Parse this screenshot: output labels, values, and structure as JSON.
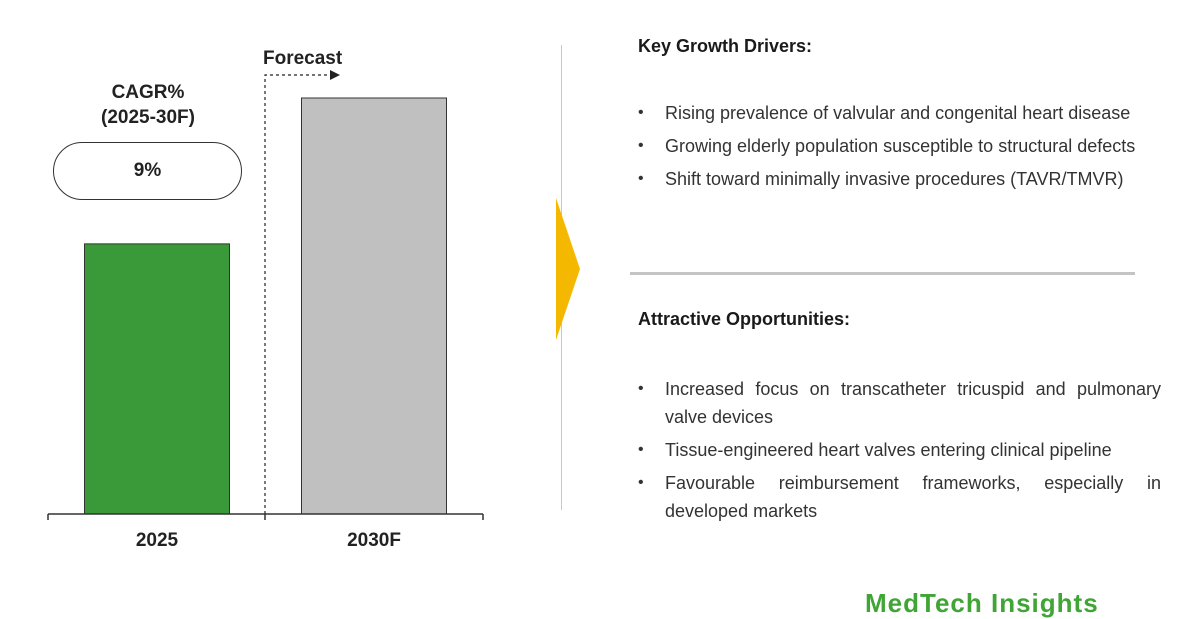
{
  "chart_data": {
    "type": "bar",
    "categories": [
      "2025",
      "2030F"
    ],
    "values": [
      100,
      154
    ],
    "colors": [
      "#3a9a3a",
      "#c0c0c0"
    ],
    "forecast_label": "Forecast",
    "forecast_start_category": "2030F",
    "cagr_label": [
      "CAGR%",
      "(2025-30F)"
    ],
    "cagr_value": "9%"
  },
  "drivers": {
    "title": "Key Growth Drivers:",
    "items": [
      "Rising prevalence of valvular and congenital heart disease",
      "Growing elderly population susceptible to structural defects",
      "Shift toward minimally invasive procedures (TAVR/TMVR)"
    ]
  },
  "opportunities": {
    "title": "Attractive Opportunities:",
    "items": [
      "Increased focus on transcatheter tricuspid and pulmonary valve devices",
      "Tissue-engineered heart valves entering clinical pipeline",
      "Favourable reimbursement frameworks, especially in developed markets"
    ]
  },
  "theme": {
    "chevron_color": "#f5b800",
    "watermark_color": "#3fa535"
  },
  "watermark": "MedTech Insights"
}
